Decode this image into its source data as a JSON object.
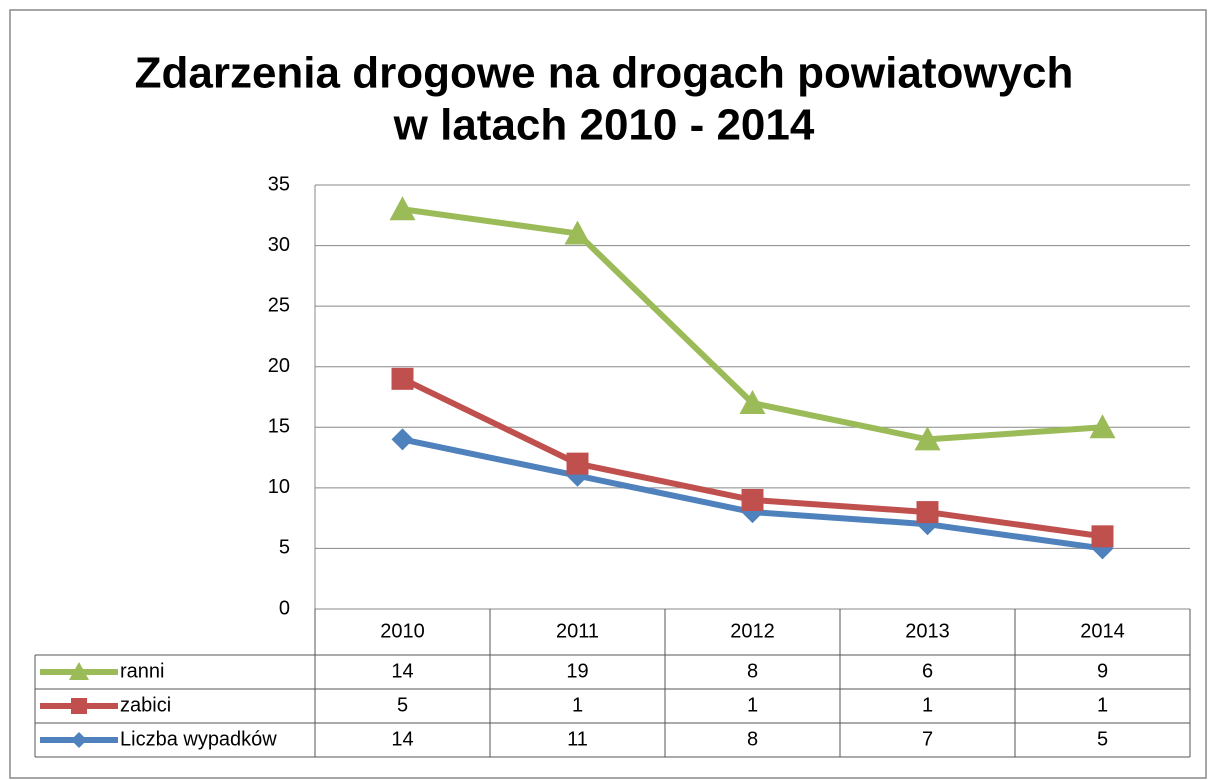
{
  "chart_data": {
    "type": "line",
    "stacked": true,
    "title": [
      "Zdarzenia drogowe na drogach powiatowych",
      "w latach 2010 - 2014"
    ],
    "categories": [
      "2010",
      "2011",
      "2012",
      "2013",
      "2014"
    ],
    "series": [
      {
        "name": "Liczba wypadków",
        "color": "#4f81bd",
        "marker": "diamond",
        "values": [
          14,
          11,
          8,
          7,
          5
        ]
      },
      {
        "name": "zabici",
        "color": "#c0504d",
        "marker": "square",
        "values": [
          5,
          1,
          1,
          1,
          1
        ]
      },
      {
        "name": "ranni",
        "color": "#9bbb59",
        "marker": "triangle",
        "values": [
          14,
          19,
          8,
          6,
          9
        ]
      }
    ],
    "ylim": [
      0,
      35
    ],
    "yticks": [
      0,
      5,
      10,
      15,
      20,
      25,
      30,
      35
    ],
    "grid": true,
    "data_table": true
  }
}
